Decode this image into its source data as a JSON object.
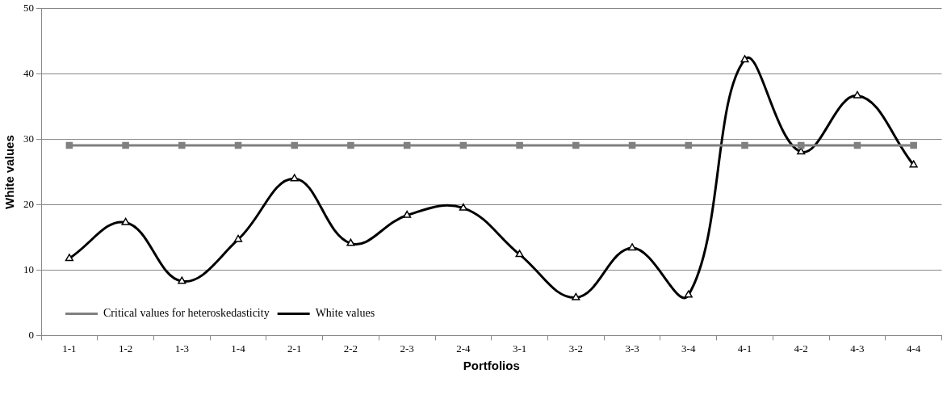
{
  "chart_data": {
    "type": "line",
    "xlabel": "Portfolios",
    "ylabel": "White values",
    "categories": [
      "1-1",
      "1-2",
      "1-3",
      "1-4",
      "2-1",
      "2-2",
      "2-3",
      "2-4",
      "3-1",
      "3-2",
      "3-3",
      "3-4",
      "4-1",
      "4-2",
      "4-3",
      "4-4"
    ],
    "series": [
      {
        "name": "Critical values for heteroskedasticity",
        "color": "#808080",
        "marker": "square",
        "values": [
          29.1,
          29.1,
          29.1,
          29.1,
          29.1,
          29.1,
          29.1,
          29.1,
          29.1,
          29.1,
          29.1,
          29.1,
          29.1,
          29.1,
          29.1,
          29.1
        ]
      },
      {
        "name": "White values",
        "color": "#000000",
        "marker": "triangle",
        "values": [
          11.8,
          17.3,
          8.3,
          14.7,
          24.0,
          14.1,
          18.4,
          19.5,
          12.4,
          5.8,
          13.4,
          6.2,
          42.2,
          28.1,
          36.7,
          26.1
        ]
      }
    ],
    "ylim": [
      0,
      50
    ],
    "yticks": [
      0,
      10,
      20,
      30,
      40,
      50
    ],
    "grid": "y",
    "legend": "bottom left",
    "line_style": "solid"
  }
}
